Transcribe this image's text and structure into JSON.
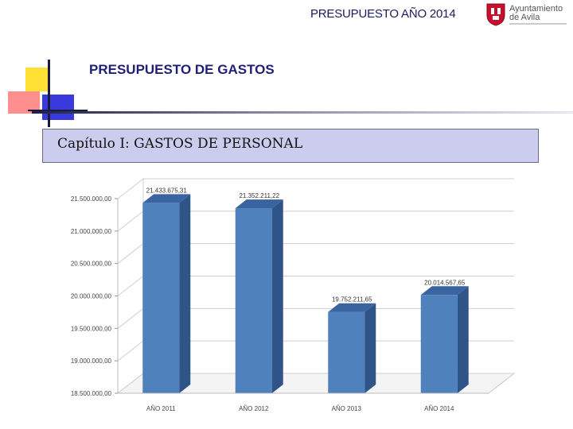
{
  "header": {
    "title": "PRESUPUESTO AÑO 2014"
  },
  "logo": {
    "line1": "Ayuntamiento",
    "line2": "de Avila",
    "icon": "city-crest-icon",
    "color": "#c8102e"
  },
  "section": {
    "title": "PRESUPUESTO DE GASTOS"
  },
  "chapter": {
    "title": "Capítulo I: GASTOS DE PERSONAL"
  },
  "chart_data": {
    "type": "bar",
    "title": "",
    "xlabel": "",
    "ylabel": "",
    "categories": [
      "AÑO 2011",
      "AÑO 2012",
      "AÑO 2013",
      "AÑO 2014"
    ],
    "values": [
      21433675.31,
      21352211.22,
      19752211.65,
      20014567.65
    ],
    "value_labels": [
      "21.433.675,31",
      "21.352.211,22",
      "19.752.211,65",
      "20.014.567,65"
    ],
    "ylim": [
      18500000,
      21500000
    ],
    "yticks": [
      18500000,
      19000000,
      19500000,
      20000000,
      20500000,
      21000000,
      21500000
    ],
    "ytick_labels": [
      "18.500.000,00",
      "19.000.000,00",
      "19.500.000,00",
      "20.000.000,00",
      "20.500.000,00",
      "21.000.000,00",
      "21.500.000,00"
    ],
    "grid": true,
    "bar_color": "#4f81bd",
    "bar_side_color": "#2f5487",
    "bar_top_color": "#3a64a0"
  }
}
